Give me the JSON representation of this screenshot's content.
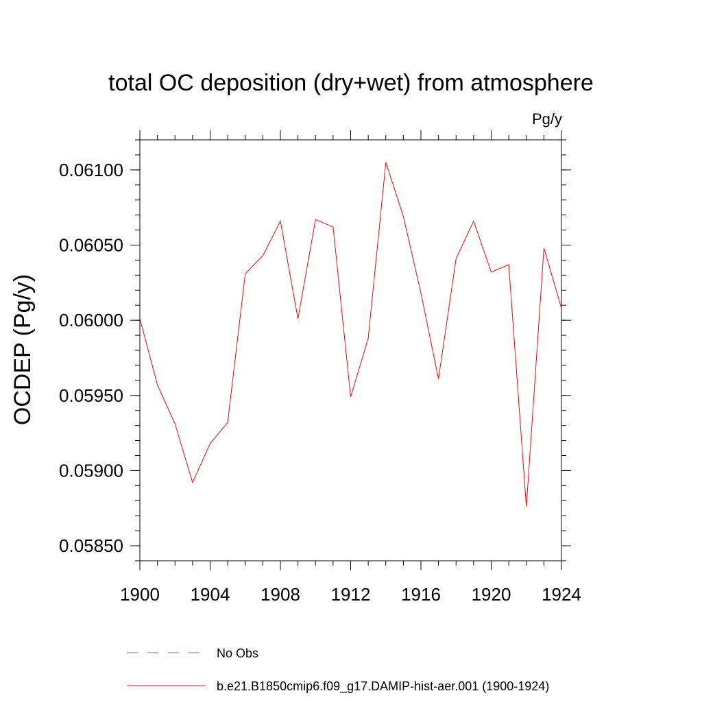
{
  "chart_data": {
    "type": "line",
    "title": "total OC deposition (dry+wet) from atmosphere",
    "units": "Pg/y",
    "ylabel": "OCDEP  (Pg/y)",
    "xlabel": "",
    "xlim": [
      1900,
      1924
    ],
    "ylim": [
      0.0584,
      0.0612
    ],
    "x_ticks": [
      1900,
      1904,
      1908,
      1912,
      1916,
      1920,
      1924
    ],
    "x_tick_labels": [
      "1900",
      "1904",
      "1908",
      "1912",
      "1916",
      "1920",
      "1924"
    ],
    "y_ticks": [
      0.0585,
      0.059,
      0.0595,
      0.06,
      0.0605,
      0.061
    ],
    "y_tick_labels": [
      "0.05850",
      "0.05900",
      "0.05950",
      "0.06000",
      "0.06050",
      "0.06100"
    ],
    "grid": false,
    "legend_position": "bottom",
    "series": [
      {
        "name": "b.e21.B1850cmip6.f09_g17.DAMIP-hist-aer.001 (1900-1924)",
        "color": "#ff0000",
        "style": "solid",
        "x": [
          1900,
          1901,
          1902,
          1903,
          1904,
          1905,
          1906,
          1907,
          1908,
          1909,
          1910,
          1911,
          1912,
          1913,
          1914,
          1915,
          1916,
          1917,
          1918,
          1919,
          1920,
          1921,
          1922,
          1923,
          1924
        ],
        "y": [
          0.06001,
          0.05957,
          0.05931,
          0.05892,
          0.05918,
          0.05932,
          0.06031,
          0.06043,
          0.06066,
          0.06001,
          0.06067,
          0.06062,
          0.05949,
          0.05988,
          0.06105,
          0.06069,
          0.06018,
          0.05961,
          0.06041,
          0.06066,
          0.06032,
          0.06037,
          0.05876,
          0.06048,
          0.06008
        ]
      }
    ],
    "legend": [
      {
        "label": "No Obs",
        "color": "#6666cc",
        "style": "dashed"
      },
      {
        "label": "b.e21.B1850cmip6.f09_g17.DAMIP-hist-aer.001 (1900-1924)",
        "color": "#ff0000",
        "style": "solid"
      }
    ]
  }
}
